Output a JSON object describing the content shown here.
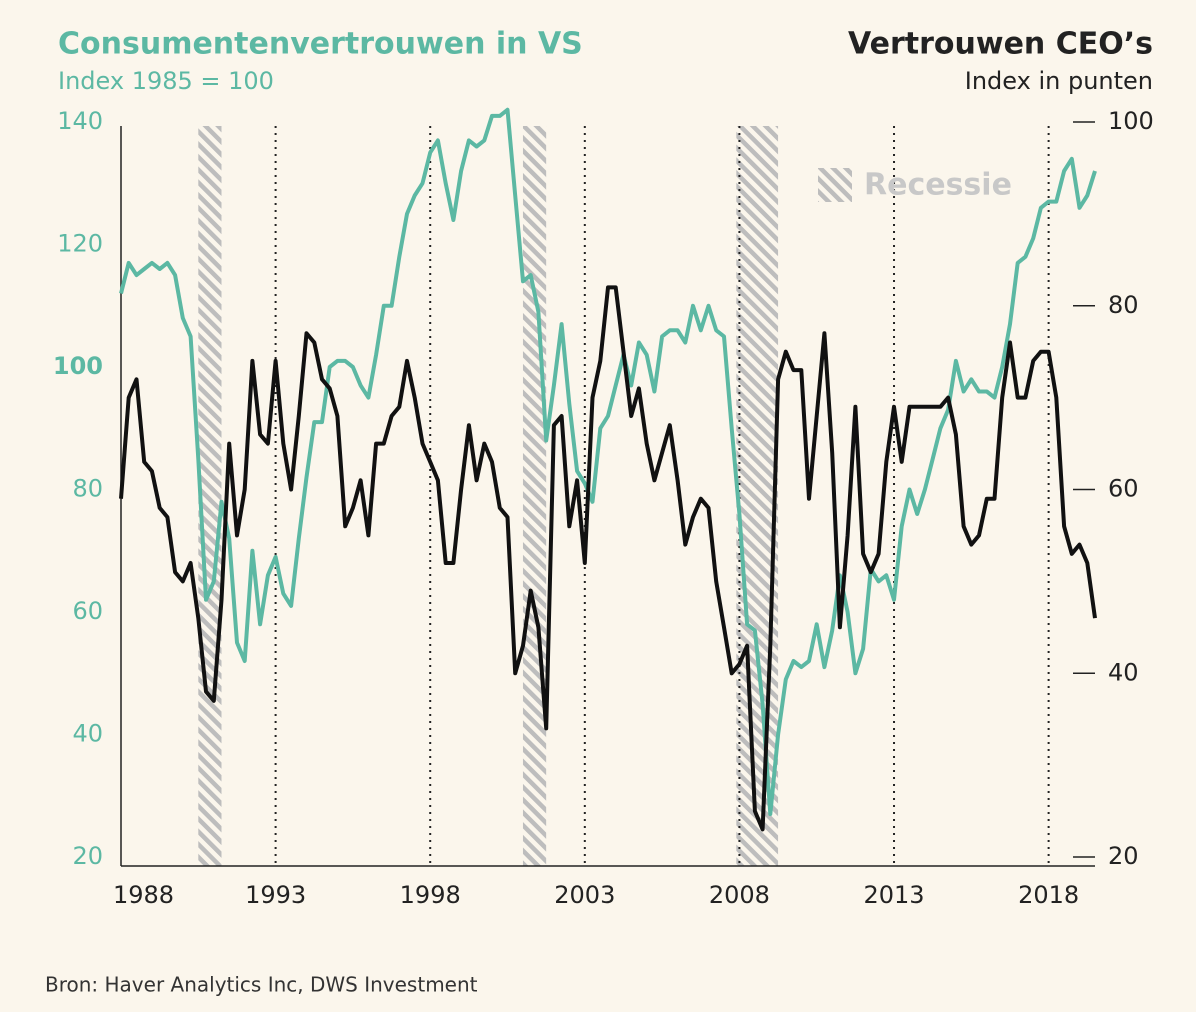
{
  "chart_data": {
    "type": "line",
    "series": [
      {
        "name": "Consumentenvertrouwen in VS",
        "color": "#5cb8a3",
        "axis": "y",
        "values": [
          112,
          117,
          115,
          116,
          117,
          116,
          117,
          115,
          108,
          105,
          85,
          62,
          65,
          78,
          72,
          55,
          52,
          70,
          58,
          66,
          69,
          63,
          61,
          72,
          82,
          91,
          91,
          100,
          101,
          101,
          100,
          97,
          95,
          102,
          110,
          110,
          118,
          125,
          128,
          130,
          135,
          137,
          130,
          124,
          132,
          137,
          136,
          137,
          141,
          141,
          142,
          128,
          114,
          115,
          109,
          88,
          97,
          107,
          94,
          83,
          81,
          78,
          90,
          92,
          97,
          102,
          97,
          104,
          102,
          96,
          105,
          106,
          106,
          104,
          110,
          106,
          110,
          106,
          105,
          90,
          76,
          58,
          57,
          45,
          27,
          40,
          49,
          52,
          51,
          52,
          58,
          51,
          57,
          66,
          60,
          50,
          54,
          67,
          65,
          66,
          62,
          74,
          80,
          76,
          80,
          85,
          90,
          93,
          101,
          96,
          98,
          96,
          96,
          95,
          100,
          107,
          117,
          118,
          121,
          126,
          127,
          127,
          132,
          134,
          126,
          128,
          132
        ]
      },
      {
        "name": "Vertrouwen CEO’s",
        "color": "#111111",
        "axis": "y2",
        "values": [
          59,
          70,
          72,
          63,
          62,
          58,
          57,
          51,
          50,
          52,
          46,
          38,
          37,
          48,
          65,
          55,
          60,
          74,
          66,
          65,
          74,
          65,
          60,
          68,
          77,
          76,
          72,
          71,
          68,
          56,
          58,
          61,
          55,
          65,
          65,
          68,
          69,
          74,
          70,
          65,
          63,
          61,
          52,
          52,
          60,
          67,
          61,
          65,
          63,
          58,
          57,
          40,
          43,
          49,
          45,
          34,
          67,
          68,
          56,
          61,
          52,
          70,
          74,
          82,
          82,
          75,
          68,
          71,
          65,
          61,
          64,
          67,
          61,
          54,
          57,
          59,
          58,
          50,
          45,
          40,
          41,
          43,
          25,
          23,
          43,
          72,
          75,
          73,
          73,
          59,
          68,
          77,
          64,
          45,
          55,
          69,
          53,
          51,
          53,
          63,
          69,
          63,
          69,
          69,
          69,
          69,
          69,
          70,
          66,
          56,
          54,
          55,
          59,
          59,
          70,
          76,
          70,
          70,
          74,
          75,
          75,
          70,
          56,
          53,
          54,
          52,
          46
        ]
      }
    ],
    "x": [
      1988,
      1988.25,
      1988.5,
      1988.75,
      1989,
      1989.25,
      1989.5,
      1989.75,
      1990,
      1990.25,
      1990.5,
      1990.75,
      1991,
      1991.25,
      1991.5,
      1991.75,
      1992,
      1992.25,
      1992.5,
      1992.75,
      1993,
      1993.25,
      1993.5,
      1993.75,
      1994,
      1994.25,
      1994.5,
      1994.75,
      1995,
      1995.25,
      1995.5,
      1995.75,
      1996,
      1996.25,
      1996.5,
      1996.75,
      1997,
      1997.25,
      1997.5,
      1997.75,
      1998,
      1998.25,
      1998.5,
      1998.75,
      1999,
      1999.25,
      1999.5,
      1999.75,
      2000,
      2000.25,
      2000.5,
      2000.75,
      2001,
      2001.25,
      2001.5,
      2001.75,
      2002,
      2002.25,
      2002.5,
      2002.75,
      2003,
      2003.25,
      2003.5,
      2003.75,
      2004,
      2004.25,
      2004.5,
      2004.75,
      2005,
      2005.25,
      2005.5,
      2005.75,
      2006,
      2006.25,
      2006.5,
      2006.75,
      2007,
      2007.25,
      2007.5,
      2007.75,
      2008,
      2008.25,
      2008.5,
      2008.75,
      2009,
      2009.25,
      2009.5,
      2009.75,
      2010,
      2010.25,
      2010.5,
      2010.75,
      2011,
      2011.25,
      2011.5,
      2011.75,
      2012,
      2012.25,
      2012.5,
      2012.75,
      2013,
      2013.25,
      2013.5,
      2013.75,
      2014,
      2014.25,
      2014.5,
      2014.75,
      2015,
      2015.25,
      2015.5,
      2015.75,
      2016,
      2016.25,
      2016.5,
      2016.75,
      2017,
      2017.25,
      2017.5,
      2017.75,
      2018,
      2018.25,
      2018.5,
      2018.75,
      2019,
      2019.25,
      2019.5
    ],
    "subtitle": "Index 1985 = 100",
    "y2_subtitle": "Index in punten",
    "xlim": [
      1988,
      2019.5
    ],
    "xticks": [
      1988,
      1993,
      1998,
      2003,
      2008,
      2013,
      2018
    ],
    "ylim": [
      20,
      140
    ],
    "yticks": [
      20,
      40,
      60,
      80,
      100,
      120,
      140
    ],
    "y2lim": [
      20,
      100
    ],
    "y2ticks": [
      20,
      40,
      60,
      80,
      100
    ],
    "grid": true,
    "recessions": [
      [
        1990.5,
        1991.25
      ],
      [
        2001.0,
        2001.75
      ],
      [
        2007.9,
        2009.25
      ]
    ],
    "recession_label": "Recessie",
    "source": "Bron: Haver Analytics Inc, DWS Investment"
  }
}
